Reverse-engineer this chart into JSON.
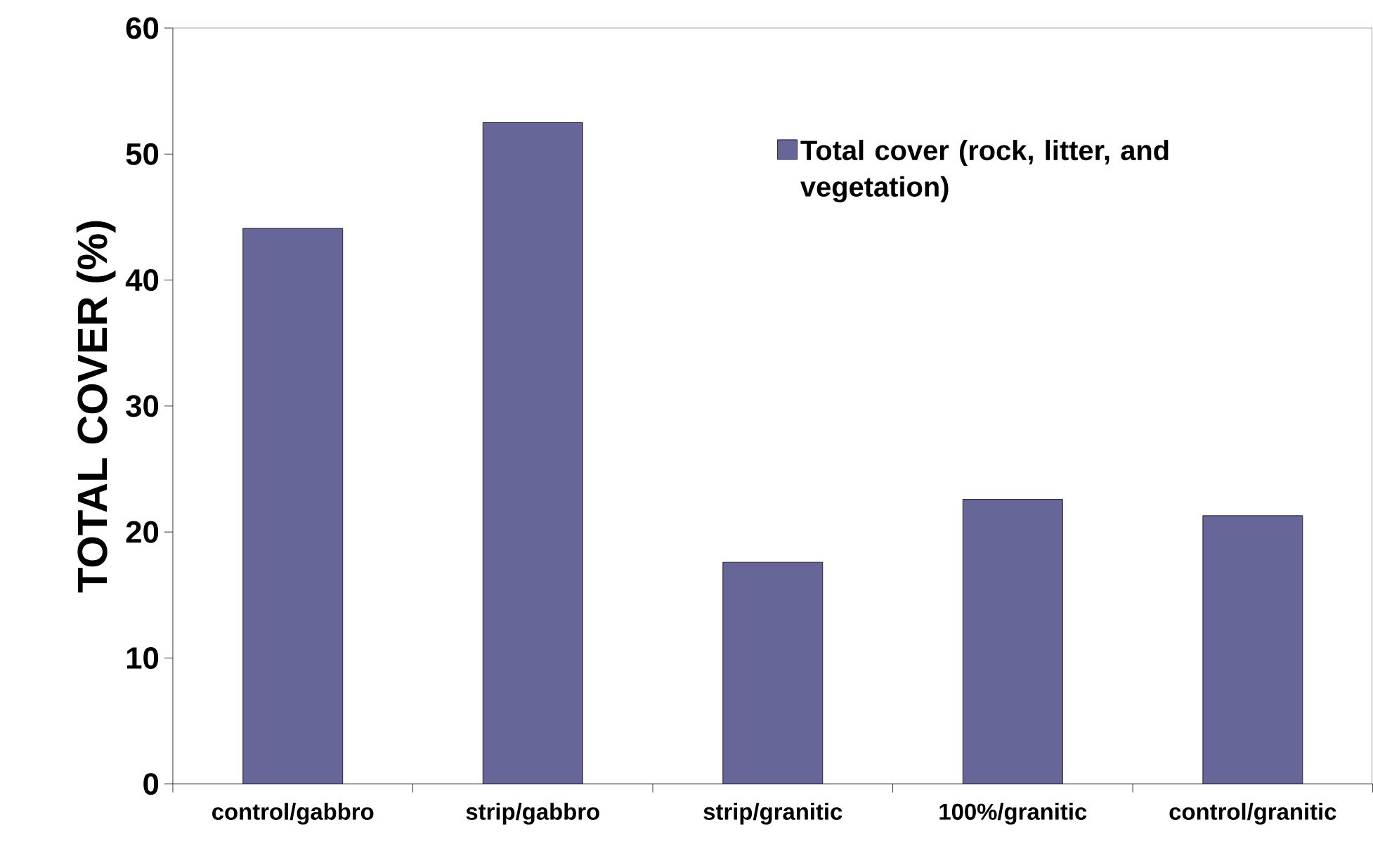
{
  "chart_data": {
    "type": "bar",
    "ylabel": "TOTAL COVER (%)",
    "categories": [
      "control/gabbro",
      "strip/gabbro",
      "strip/granitic",
      "100%/granitic",
      "control/granitic"
    ],
    "series": [
      {
        "name": "Total cover (rock, litter, and vegetation)",
        "color": "#666699",
        "values": [
          44.1,
          52.5,
          17.6,
          22.6,
          21.3
        ]
      }
    ],
    "ylim": [
      0,
      60
    ],
    "yticks": [
      0,
      10,
      20,
      30,
      40,
      50,
      60
    ],
    "legend": "top right"
  }
}
